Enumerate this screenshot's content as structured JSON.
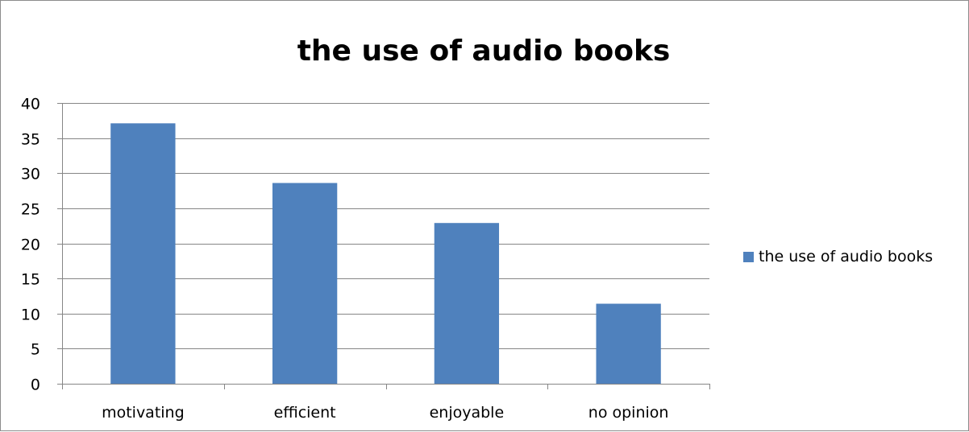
{
  "chart_data": {
    "type": "bar",
    "title": "the use of audio books",
    "categories": [
      "motivating",
      "efficient",
      "enjoyable",
      "no opinion"
    ],
    "series": [
      {
        "name": "the use of audio books",
        "values": [
          37.1,
          28.6,
          22.9,
          11.4
        ]
      }
    ],
    "ylim": [
      0,
      40
    ],
    "yticks": [
      0,
      5,
      10,
      15,
      20,
      25,
      30,
      35,
      40
    ],
    "grid": true,
    "legend_position": "right"
  },
  "colors": {
    "bar": "#4f81bd",
    "gridline": "#868686",
    "axis": "#868686"
  }
}
